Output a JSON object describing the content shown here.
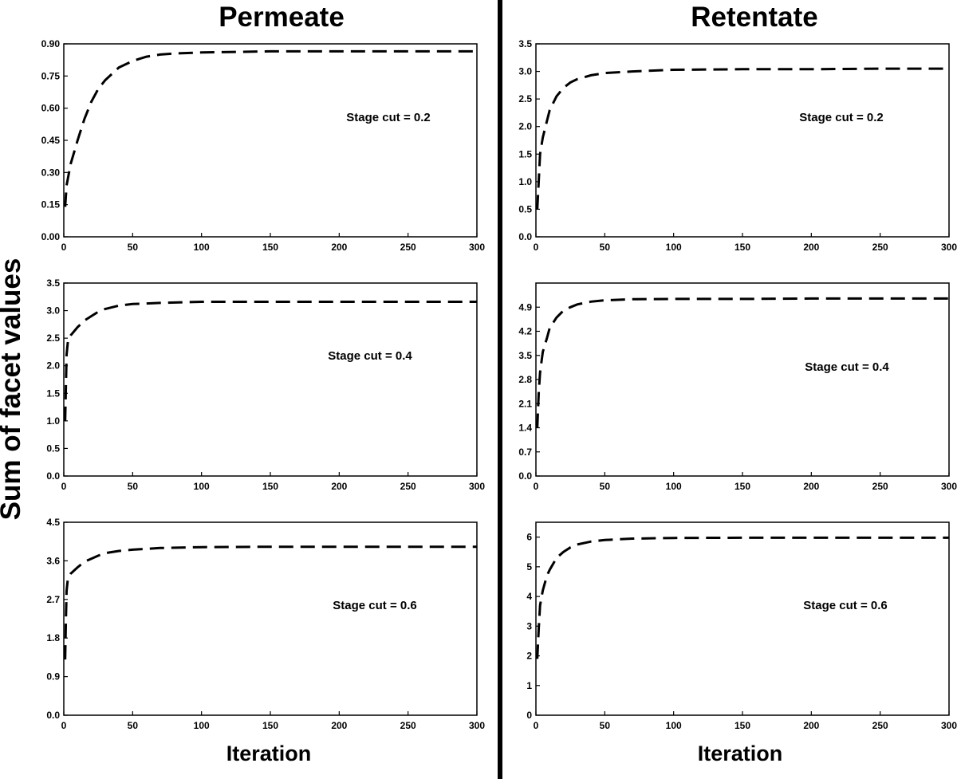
{
  "figure": {
    "left_title": "Permeate",
    "right_title": "Retentate",
    "ylabel": "Sum of facet values",
    "left_xlabel": "Iteration",
    "right_xlabel": "Iteration"
  },
  "chart_data": [
    {
      "type": "line",
      "column": "Permeate",
      "annotation": "Stage cut = 0.2",
      "xlim": [
        0,
        300
      ],
      "xticks": [
        0,
        50,
        100,
        150,
        200,
        250,
        300
      ],
      "ylim": [
        0,
        0.9
      ],
      "yticks": [
        "0.00",
        "0.15",
        "0.30",
        "0.45",
        "0.60",
        "0.75",
        "0.90"
      ],
      "series": [
        {
          "style": "dashed",
          "color": "#000000",
          "x": [
            1,
            2,
            5,
            10,
            15,
            20,
            25,
            30,
            40,
            50,
            60,
            70,
            80,
            100,
            150,
            200,
            250,
            300
          ],
          "y": [
            0.14,
            0.24,
            0.34,
            0.45,
            0.55,
            0.63,
            0.69,
            0.73,
            0.79,
            0.82,
            0.84,
            0.85,
            0.855,
            0.86,
            0.865,
            0.865,
            0.865,
            0.865
          ]
        }
      ]
    },
    {
      "type": "line",
      "column": "Retentate",
      "annotation": "Stage cut = 0.2",
      "xlim": [
        0,
        300
      ],
      "xticks": [
        0,
        50,
        100,
        150,
        200,
        250,
        300
      ],
      "ylim": [
        0,
        3.5
      ],
      "yticks": [
        "0.0",
        "0.5",
        "1.0",
        "1.5",
        "2.0",
        "2.5",
        "3.0",
        "3.5"
      ],
      "series": [
        {
          "style": "dashed",
          "color": "#000000",
          "x": [
            1,
            2,
            3,
            5,
            8,
            10,
            15,
            20,
            25,
            30,
            40,
            50,
            70,
            100,
            150,
            200,
            250,
            300
          ],
          "y": [
            0.5,
            1.0,
            1.5,
            1.8,
            2.1,
            2.3,
            2.55,
            2.7,
            2.8,
            2.86,
            2.93,
            2.97,
            3.0,
            3.03,
            3.04,
            3.04,
            3.05,
            3.05
          ]
        }
      ]
    },
    {
      "type": "line",
      "column": "Permeate",
      "annotation": "Stage cut = 0.4",
      "xlim": [
        0,
        300
      ],
      "xticks": [
        0,
        50,
        100,
        150,
        200,
        250,
        300
      ],
      "ylim": [
        0,
        3.5
      ],
      "yticks": [
        "0.0",
        "0.5",
        "1.0",
        "1.5",
        "2.0",
        "2.5",
        "3.0",
        "3.5"
      ],
      "series": [
        {
          "style": "dashed",
          "color": "#000000",
          "x": [
            1,
            1.5,
            2,
            3,
            5,
            10,
            15,
            20,
            25,
            30,
            40,
            50,
            70,
            100,
            150,
            200,
            250,
            300
          ],
          "y": [
            1.0,
            1.6,
            2.2,
            2.45,
            2.55,
            2.7,
            2.82,
            2.9,
            2.98,
            3.03,
            3.09,
            3.12,
            3.14,
            3.16,
            3.16,
            3.16,
            3.16,
            3.16
          ]
        }
      ]
    },
    {
      "type": "line",
      "column": "Retentate",
      "annotation": "Stage cut = 0.4",
      "xlim": [
        0,
        300
      ],
      "xticks": [
        0,
        50,
        100,
        150,
        200,
        250,
        300
      ],
      "ylim": [
        0,
        5.6
      ],
      "yticks": [
        "0.0",
        "0.7",
        "1.4",
        "2.1",
        "2.8",
        "3.5",
        "4.2",
        "4.9"
      ],
      "series": [
        {
          "style": "dashed",
          "color": "#000000",
          "x": [
            1,
            2,
            3,
            5,
            8,
            10,
            15,
            20,
            25,
            30,
            40,
            50,
            70,
            100,
            150,
            200,
            250,
            300
          ],
          "y": [
            1.4,
            2.4,
            3.0,
            3.6,
            4.0,
            4.3,
            4.6,
            4.8,
            4.9,
            4.98,
            5.06,
            5.1,
            5.13,
            5.14,
            5.14,
            5.15,
            5.15,
            5.15
          ]
        }
      ]
    },
    {
      "type": "line",
      "column": "Permeate",
      "annotation": "Stage cut = 0.6",
      "xlim": [
        0,
        300
      ],
      "xticks": [
        0,
        50,
        100,
        150,
        200,
        250,
        300
      ],
      "ylim": [
        0,
        4.5
      ],
      "yticks": [
        "0.0",
        "0.9",
        "1.8",
        "2.7",
        "3.6",
        "4.5"
      ],
      "series": [
        {
          "style": "dashed",
          "color": "#000000",
          "x": [
            1,
            1.5,
            2,
            3,
            5,
            10,
            15,
            20,
            25,
            30,
            40,
            50,
            70,
            100,
            150,
            200,
            250,
            300
          ],
          "y": [
            1.3,
            2.2,
            2.9,
            3.2,
            3.3,
            3.45,
            3.58,
            3.65,
            3.72,
            3.78,
            3.83,
            3.86,
            3.9,
            3.92,
            3.93,
            3.93,
            3.93,
            3.93
          ]
        }
      ]
    },
    {
      "type": "line",
      "column": "Retentate",
      "annotation": "Stage cut = 0.6",
      "xlim": [
        0,
        300
      ],
      "xticks": [
        0,
        50,
        100,
        150,
        200,
        250,
        300
      ],
      "ylim": [
        0,
        6.5
      ],
      "yticks": [
        "0",
        "1",
        "2",
        "3",
        "4",
        "5",
        "6"
      ],
      "series": [
        {
          "style": "dashed",
          "color": "#000000",
          "x": [
            1,
            2,
            3,
            5,
            8,
            10,
            15,
            20,
            25,
            30,
            40,
            50,
            70,
            100,
            150,
            200,
            250,
            300
          ],
          "y": [
            1.9,
            2.9,
            3.7,
            4.2,
            4.7,
            4.9,
            5.3,
            5.5,
            5.65,
            5.75,
            5.85,
            5.9,
            5.95,
            5.97,
            5.98,
            5.98,
            5.98,
            5.98
          ]
        }
      ]
    }
  ]
}
